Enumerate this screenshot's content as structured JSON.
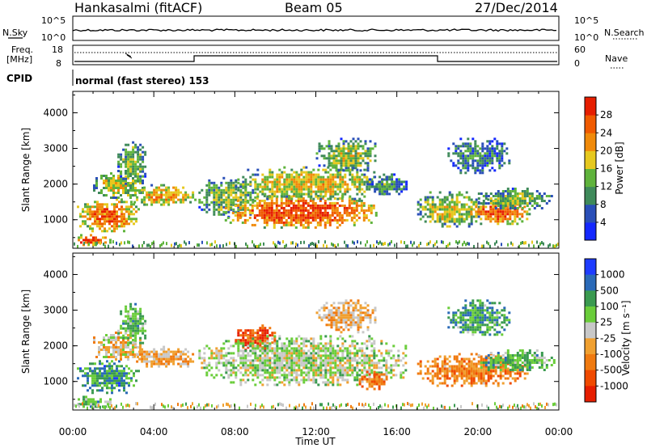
{
  "header": {
    "station": "Hankasalmi (fitACF)",
    "beam": "Beam 05",
    "date": "27/Dec/2014"
  },
  "panels": {
    "noise": {
      "left_label": "N.Sky",
      "right_label": "N.Search",
      "tick_top": "10^5",
      "tick_bottom": "10^0"
    },
    "freq": {
      "left_label_1": "Freq.",
      "left_label_2": "[MHz]",
      "tick_top": "18",
      "tick_bottom": "8",
      "right_label": "Nave",
      "right_tick_top": "60",
      "right_tick_bottom": "0"
    },
    "cpid": {
      "label": "CPID",
      "mode": "normal (fast stereo) 153"
    }
  },
  "chart_data": [
    {
      "type": "heatmap",
      "quantity": "power",
      "xlabel": "",
      "ylabel": "Slant Range [km]",
      "xlim": [
        0,
        24
      ],
      "ylim": [
        200,
        4600
      ],
      "yticks": [
        "1000",
        "2000",
        "3000",
        "4000"
      ],
      "colorbar": {
        "label": "Power [dB]",
        "ticks": [
          "4",
          "8",
          "12",
          "16",
          "20",
          "24",
          "28"
        ],
        "colors": [
          "#1428ff",
          "#2a4fb8",
          "#3f8a5a",
          "#5fb33c",
          "#e6c81e",
          "#f08a0a",
          "#f05a00",
          "#e61e00"
        ]
      },
      "echo_regions": [
        {
          "t0": 0.0,
          "t1": 1.8,
          "r0": 300,
          "r1": 600,
          "level": 0.9
        },
        {
          "t0": 0.2,
          "t1": 3.2,
          "r0": 700,
          "r1": 1600,
          "level": 0.8
        },
        {
          "t0": 1.0,
          "t1": 3.5,
          "r0": 1600,
          "r1": 2400,
          "level": 0.55
        },
        {
          "t0": 2.2,
          "t1": 3.6,
          "r0": 2000,
          "r1": 3200,
          "level": 0.45
        },
        {
          "t0": 3.0,
          "t1": 6.0,
          "r0": 1400,
          "r1": 2000,
          "level": 0.7
        },
        {
          "t0": 6.2,
          "t1": 9.0,
          "r0": 1100,
          "r1": 2200,
          "level": 0.45
        },
        {
          "t0": 7.5,
          "t1": 15.0,
          "r0": 800,
          "r1": 1700,
          "level": 0.9
        },
        {
          "t0": 8.0,
          "t1": 15.5,
          "r0": 1600,
          "r1": 2500,
          "level": 0.6
        },
        {
          "t0": 12.0,
          "t1": 15.0,
          "r0": 2400,
          "r1": 3300,
          "level": 0.5
        },
        {
          "t0": 14.5,
          "t1": 16.5,
          "r0": 1700,
          "r1": 2300,
          "level": 0.35
        },
        {
          "t0": 17.0,
          "t1": 20.0,
          "r0": 800,
          "r1": 1800,
          "level": 0.55
        },
        {
          "t0": 19.5,
          "t1": 22.5,
          "r0": 900,
          "r1": 1600,
          "level": 0.85
        },
        {
          "t0": 20.0,
          "t1": 23.8,
          "r0": 1300,
          "r1": 1900,
          "level": 0.45
        },
        {
          "t0": 18.5,
          "t1": 21.5,
          "r0": 2300,
          "r1": 3300,
          "level": 0.3
        }
      ]
    },
    {
      "type": "heatmap",
      "quantity": "velocity",
      "xlabel": "Time UT",
      "ylabel": "Slant Range [km]",
      "xlim": [
        0,
        24
      ],
      "ylim": [
        200,
        4600
      ],
      "xticks": [
        "00:00",
        "04:00",
        "08:00",
        "12:00",
        "16:00",
        "20:00",
        "00:00"
      ],
      "yticks": [
        "1000",
        "2000",
        "3000",
        "4000"
      ],
      "colorbar": {
        "label": "Velocity [m s⁻¹]",
        "ticks": [
          "1000",
          "500",
          "100",
          "25",
          "-25",
          "-100",
          "-500",
          "-1000"
        ],
        "colors": [
          "#1e3cff",
          "#2a6ab8",
          "#3a9a50",
          "#6acd3a",
          "#c8c8c8",
          "#f0a030",
          "#f07a10",
          "#f04a00",
          "#e61e00"
        ]
      },
      "echo_regions": [
        {
          "t0": 0.0,
          "t1": 1.8,
          "r0": 300,
          "r1": 600,
          "level": 0.35
        },
        {
          "t0": 0.2,
          "t1": 3.2,
          "r0": 700,
          "r1": 1600,
          "level": 0.25
        },
        {
          "t0": 1.0,
          "t1": 3.5,
          "r0": 1600,
          "r1": 2400,
          "level": 0.55
        },
        {
          "t0": 2.2,
          "t1": 3.6,
          "r0": 2000,
          "r1": 3200,
          "level": 0.35
        },
        {
          "t0": 3.0,
          "t1": 6.0,
          "r0": 1400,
          "r1": 2000,
          "level": 0.6
        },
        {
          "t0": 8.0,
          "t1": 10.0,
          "r0": 1900,
          "r1": 2600,
          "level": 0.85
        },
        {
          "t0": 6.2,
          "t1": 16.5,
          "r0": 900,
          "r1": 2300,
          "level": 0.45
        },
        {
          "t0": 12.0,
          "t1": 15.0,
          "r0": 2400,
          "r1": 3300,
          "level": 0.6
        },
        {
          "t0": 14.0,
          "t1": 15.5,
          "r0": 800,
          "r1": 1300,
          "level": 0.7
        },
        {
          "t0": 17.0,
          "t1": 22.5,
          "r0": 900,
          "r1": 1800,
          "level": 0.7
        },
        {
          "t0": 20.0,
          "t1": 23.8,
          "r0": 1300,
          "r1": 1900,
          "level": 0.35
        },
        {
          "t0": 18.5,
          "t1": 21.5,
          "r0": 2300,
          "r1": 3300,
          "level": 0.3
        }
      ]
    }
  ]
}
